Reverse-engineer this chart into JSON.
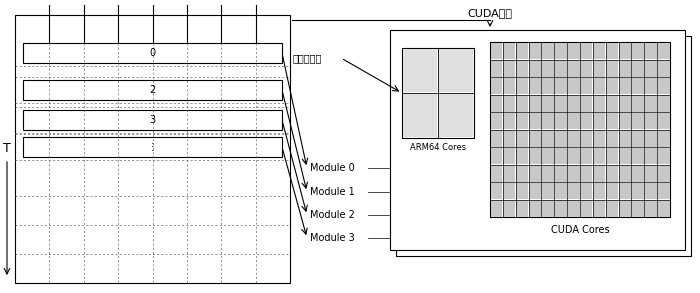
{
  "fig_width": 7.0,
  "fig_height": 2.93,
  "dpi": 100,
  "bg_color": "#ffffff",
  "line_color": "#000000",
  "gray_fill": "#c8c8c8",
  "light_gray": "#e0e0e0",
  "cuda_parallel_label": "CUDA并行",
  "multithread_label": "多线程并行",
  "t_label": "T",
  "arm_label": "ARM64 Cores",
  "cuda_cores_label": "CUDA Cores",
  "module_labels": [
    "Module 0",
    "Module 1",
    "Module 2",
    "Module 3"
  ],
  "row_labels": [
    "0",
    "2",
    "3",
    "⋮"
  ],
  "cuda_grid_rows": 10,
  "cuda_grid_cols": 14,
  "n_stream_cols": 8
}
